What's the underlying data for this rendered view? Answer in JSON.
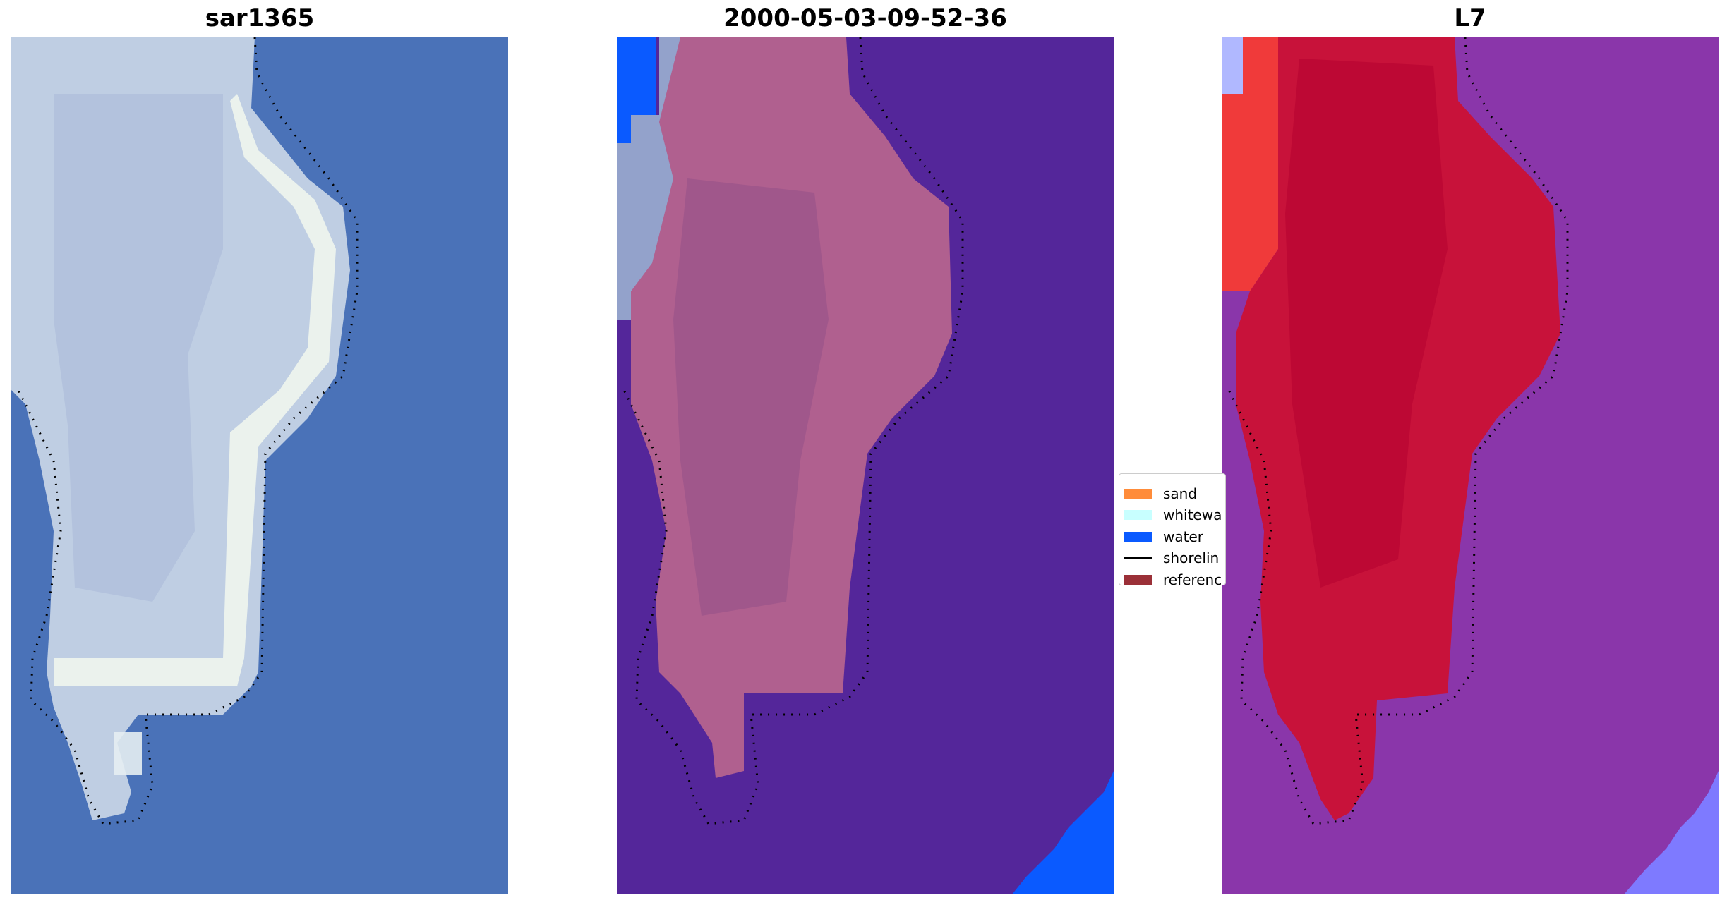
{
  "figure": {
    "panels": [
      {
        "title": "sar1365",
        "kind": "rgb-image"
      },
      {
        "title": "2000-05-03-09-52-36",
        "kind": "classified-overlay"
      },
      {
        "title": "L7",
        "kind": "index-image"
      }
    ]
  },
  "legend": {
    "placement": "center, between second and third panels",
    "items": [
      {
        "label": "sand",
        "color": "#FF8C3A",
        "type": "patch"
      },
      {
        "label": "whitewa",
        "color": "#C8FFFF",
        "type": "patch"
      },
      {
        "label": "water",
        "color": "#0A5AFF",
        "type": "patch"
      },
      {
        "label": "shorelin",
        "color": "#000000",
        "type": "line"
      },
      {
        "label": "referenc",
        "color": "#9B3038",
        "type": "patch"
      }
    ]
  },
  "colors": {
    "sea_blue": "#4A72B8",
    "island_white": "#C9D6E6",
    "classified_background": "#54269A",
    "classified_island": "#B0608F",
    "classified_water": "#0A5AFF",
    "index_background": "#8A36AA",
    "index_island": "#C8123A",
    "index_left_strip": "#F03A3A",
    "index_corner": "#7E7AFF",
    "shoreline": "#000000"
  }
}
